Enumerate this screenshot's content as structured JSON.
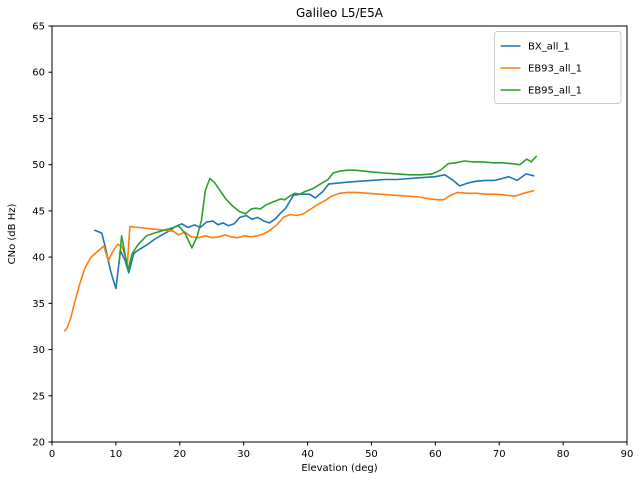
{
  "chart_data": {
    "type": "line",
    "title": "Galileo L5/E5A",
    "xlabel": "Elevation (deg)",
    "ylabel": "CNo (dB Hz)",
    "xlim": [
      0,
      90
    ],
    "ylim": [
      20,
      65
    ],
    "xticks": [
      0,
      10,
      20,
      30,
      40,
      50,
      60,
      70,
      80,
      90
    ],
    "yticks": [
      20,
      25,
      30,
      35,
      40,
      45,
      50,
      55,
      60,
      65
    ],
    "grid": false,
    "legend": {
      "position": "upper right"
    },
    "series": [
      {
        "name": "BX_all_1",
        "color": "#1f77b4",
        "points": [
          [
            6.7,
            42.9
          ],
          [
            7.8,
            42.6
          ],
          [
            8.4,
            40.9
          ],
          [
            9.2,
            38.4
          ],
          [
            10,
            36.6
          ],
          [
            10.7,
            40.7
          ],
          [
            11.4,
            39.7
          ],
          [
            12,
            38.3
          ],
          [
            12.8,
            40.4
          ],
          [
            13.6,
            40.8
          ],
          [
            14.8,
            41.3
          ],
          [
            16,
            41.9
          ],
          [
            17.2,
            42.4
          ],
          [
            18.3,
            42.8
          ],
          [
            19.3,
            43.3
          ],
          [
            20.3,
            43.6
          ],
          [
            21.3,
            43.2
          ],
          [
            22.3,
            43.5
          ],
          [
            23.2,
            43.2
          ],
          [
            24.2,
            43.8
          ],
          [
            25.2,
            43.9
          ],
          [
            26,
            43.5
          ],
          [
            26.8,
            43.7
          ],
          [
            27.6,
            43.4
          ],
          [
            28.5,
            43.6
          ],
          [
            29.4,
            44.3
          ],
          [
            30.4,
            44.5
          ],
          [
            31.3,
            44.1
          ],
          [
            32.2,
            44.3
          ],
          [
            33.2,
            43.9
          ],
          [
            34,
            43.7
          ],
          [
            34.9,
            44.1
          ],
          [
            35.7,
            44.7
          ],
          [
            36.6,
            45.3
          ],
          [
            37.8,
            46.7
          ],
          [
            39,
            46.8
          ],
          [
            40.3,
            46.8
          ],
          [
            41.2,
            46.4
          ],
          [
            42.4,
            47.1
          ],
          [
            43.3,
            47.9
          ],
          [
            44.6,
            48
          ],
          [
            46.2,
            48.1
          ],
          [
            48,
            48.2
          ],
          [
            50,
            48.3
          ],
          [
            52,
            48.4
          ],
          [
            54,
            48.4
          ],
          [
            56,
            48.5
          ],
          [
            58,
            48.6
          ],
          [
            60,
            48.7
          ],
          [
            61.5,
            48.9
          ],
          [
            62.8,
            48.3
          ],
          [
            63.8,
            47.7
          ],
          [
            65,
            48
          ],
          [
            66.3,
            48.2
          ],
          [
            67.8,
            48.3
          ],
          [
            69.3,
            48.3
          ],
          [
            70.5,
            48.5
          ],
          [
            71.5,
            48.7
          ],
          [
            72.8,
            48.3
          ],
          [
            74.2,
            49
          ],
          [
            75.4,
            48.8
          ]
        ]
      },
      {
        "name": "EB93_all_1",
        "color": "#ff7f0e",
        "points": [
          [
            2,
            32
          ],
          [
            2.4,
            32.4
          ],
          [
            2.9,
            33.3
          ],
          [
            3.5,
            35
          ],
          [
            4.3,
            37
          ],
          [
            5.2,
            38.9
          ],
          [
            6.1,
            40
          ],
          [
            7.1,
            40.6
          ],
          [
            8.1,
            41.2
          ],
          [
            8.8,
            39.6
          ],
          [
            9.5,
            40.6
          ],
          [
            10.3,
            41.4
          ],
          [
            11,
            41.1
          ],
          [
            11.8,
            39.3
          ],
          [
            12.2,
            43.3
          ],
          [
            13.5,
            43.2
          ],
          [
            15,
            43.1
          ],
          [
            16.5,
            43
          ],
          [
            17.8,
            42.9
          ],
          [
            19,
            42.8
          ],
          [
            19.8,
            42.4
          ],
          [
            20.8,
            42.7
          ],
          [
            21.8,
            42.2
          ],
          [
            22.9,
            42.1
          ],
          [
            24,
            42.3
          ],
          [
            25.1,
            42.1
          ],
          [
            26.1,
            42.2
          ],
          [
            27.1,
            42.4
          ],
          [
            28,
            42.2
          ],
          [
            29,
            42.1
          ],
          [
            30.1,
            42.3
          ],
          [
            31.1,
            42.2
          ],
          [
            32.1,
            42.3
          ],
          [
            33.1,
            42.5
          ],
          [
            34.1,
            42.9
          ],
          [
            35.2,
            43.5
          ],
          [
            36.2,
            44.3
          ],
          [
            37.2,
            44.6
          ],
          [
            38.3,
            44.5
          ],
          [
            39.4,
            44.7
          ],
          [
            40.5,
            45.2
          ],
          [
            41.6,
            45.7
          ],
          [
            42.7,
            46.1
          ],
          [
            43.8,
            46.6
          ],
          [
            45,
            46.9
          ],
          [
            46.3,
            47
          ],
          [
            47.7,
            47
          ],
          [
            49.5,
            46.9
          ],
          [
            51.5,
            46.8
          ],
          [
            53.5,
            46.7
          ],
          [
            55.5,
            46.6
          ],
          [
            57.5,
            46.5
          ],
          [
            59.2,
            46.3
          ],
          [
            60.4,
            46.2
          ],
          [
            61.3,
            46.2
          ],
          [
            62.4,
            46.7
          ],
          [
            63.5,
            47
          ],
          [
            65,
            46.9
          ],
          [
            66.5,
            46.9
          ],
          [
            68,
            46.8
          ],
          [
            69.5,
            46.8
          ],
          [
            71,
            46.7
          ],
          [
            72.5,
            46.6
          ],
          [
            73.8,
            46.9
          ],
          [
            75.4,
            47.2
          ]
        ]
      },
      {
        "name": "EB95_all_1",
        "color": "#2ca02c",
        "points": [
          [
            10.5,
            39.3
          ],
          [
            10.9,
            42.3
          ],
          [
            11.9,
            38.6
          ],
          [
            12.5,
            40.3
          ],
          [
            13.5,
            41.4
          ],
          [
            14.8,
            42.3
          ],
          [
            16,
            42.6
          ],
          [
            17,
            42.8
          ],
          [
            18,
            43
          ],
          [
            19,
            43.2
          ],
          [
            19.8,
            43.4
          ],
          [
            20.8,
            42.6
          ],
          [
            21.9,
            41
          ],
          [
            22.7,
            42.2
          ],
          [
            23.4,
            44
          ],
          [
            24,
            47.2
          ],
          [
            24.7,
            48.5
          ],
          [
            25.4,
            48.1
          ],
          [
            26.2,
            47.3
          ],
          [
            27.2,
            46.3
          ],
          [
            28.3,
            45.5
          ],
          [
            29.4,
            44.9
          ],
          [
            30.3,
            44.7
          ],
          [
            31.2,
            45.2
          ],
          [
            31.9,
            45.3
          ],
          [
            32.6,
            45.2
          ],
          [
            33.4,
            45.6
          ],
          [
            34.3,
            45.9
          ],
          [
            35.1,
            46.1
          ],
          [
            35.8,
            46.3
          ],
          [
            36.4,
            46.2
          ],
          [
            37.2,
            46.6
          ],
          [
            38,
            46.9
          ],
          [
            38.8,
            46.8
          ],
          [
            39.6,
            47.1
          ],
          [
            40.8,
            47.4
          ],
          [
            42,
            47.9
          ],
          [
            43.2,
            48.4
          ],
          [
            44,
            49.1
          ],
          [
            45,
            49.3
          ],
          [
            46.3,
            49.4
          ],
          [
            47.5,
            49.4
          ],
          [
            48.8,
            49.3
          ],
          [
            50.2,
            49.2
          ],
          [
            52,
            49.1
          ],
          [
            54,
            49
          ],
          [
            56,
            48.9
          ],
          [
            57.8,
            48.9
          ],
          [
            59.5,
            49
          ],
          [
            60.8,
            49.4
          ],
          [
            62,
            50.1
          ],
          [
            63.2,
            50.2
          ],
          [
            64.5,
            50.4
          ],
          [
            66,
            50.3
          ],
          [
            67.5,
            50.3
          ],
          [
            69,
            50.2
          ],
          [
            70.5,
            50.2
          ],
          [
            72,
            50.1
          ],
          [
            73.2,
            50
          ],
          [
            74.3,
            50.6
          ],
          [
            75,
            50.3
          ],
          [
            75.8,
            50.9
          ]
        ]
      }
    ]
  }
}
